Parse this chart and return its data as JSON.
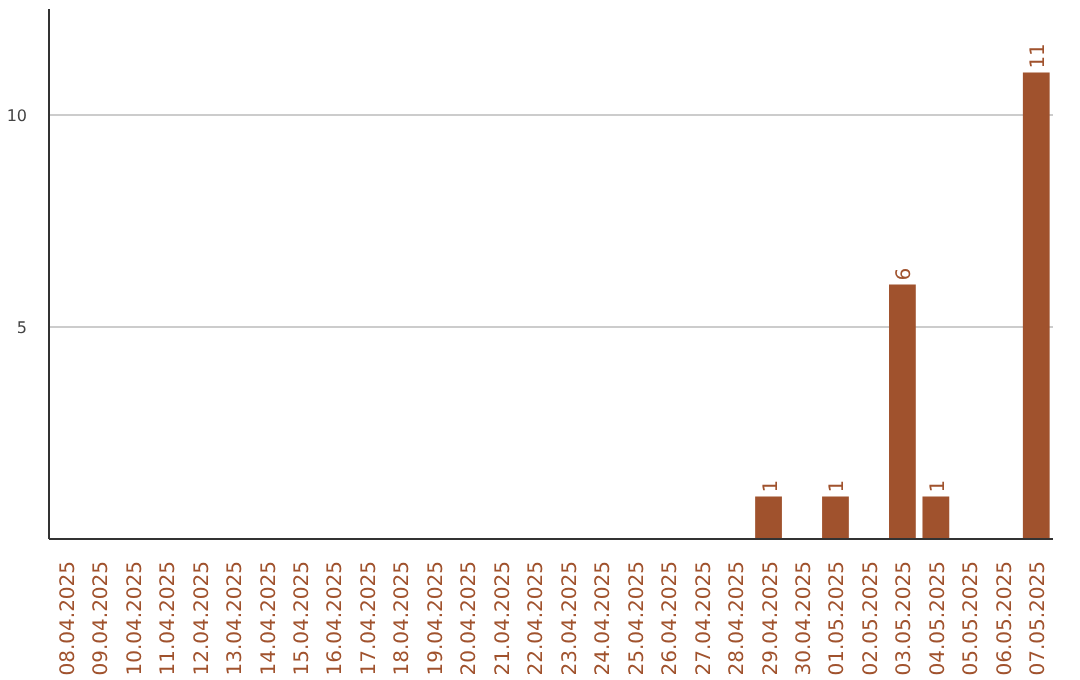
{
  "chart_data": {
    "type": "bar",
    "categories": [
      "08.04.2025",
      "09.04.2025",
      "10.04.2025",
      "11.04.2025",
      "12.04.2025",
      "13.04.2025",
      "14.04.2025",
      "15.04.2025",
      "16.04.2025",
      "17.04.2025",
      "18.04.2025",
      "19.04.2025",
      "20.04.2025",
      "21.04.2025",
      "22.04.2025",
      "23.04.2025",
      "24.04.2025",
      "25.04.2025",
      "26.04.2025",
      "27.04.2025",
      "28.04.2025",
      "29.04.2025",
      "30.04.2025",
      "01.05.2025",
      "02.05.2025",
      "03.05.2025",
      "04.05.2025",
      "05.05.2025",
      "06.05.2025",
      "07.05.2025"
    ],
    "values": [
      0,
      0,
      0,
      0,
      0,
      0,
      0,
      0,
      0,
      0,
      0,
      0,
      0,
      0,
      0,
      0,
      0,
      0,
      0,
      0,
      0,
      1,
      0,
      1,
      0,
      6,
      1,
      0,
      0,
      11
    ],
    "value_labels": [
      null,
      null,
      null,
      null,
      null,
      null,
      null,
      null,
      null,
      null,
      null,
      null,
      null,
      null,
      null,
      null,
      null,
      null,
      null,
      null,
      null,
      "1",
      null,
      "1",
      null,
      "6",
      "1",
      null,
      null,
      "11"
    ],
    "color": "#a0522d",
    "ylim": [
      0,
      12.5
    ],
    "yticks": [
      5,
      10
    ],
    "grid": "y"
  }
}
